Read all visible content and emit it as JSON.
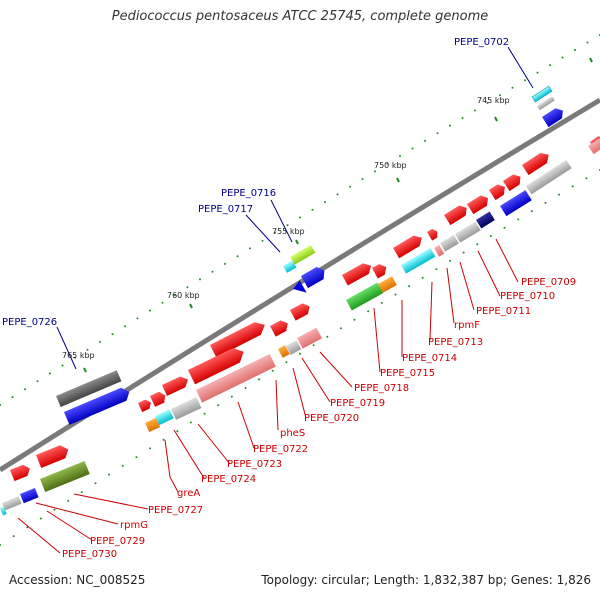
{
  "title": "Pediococcus pentosaceus ATCC 25745, complete genome",
  "footer": {
    "accession": "Accession: NC_008525",
    "summary": "Topology: circular; Length: 1,832,387 bp; Genes: 1,826"
  },
  "kbp_labels": [
    "745 kbp",
    "750 kbp",
    "755 kbp",
    "760 kbp",
    "765 kbp"
  ],
  "blue_labels": [
    "PEPE_0702",
    "PEPE_0716",
    "PEPE_0717",
    "PEPE_0726"
  ],
  "red_labels": [
    "PEPE_0709",
    "PEPE_0710",
    "PEPE_0711",
    "rpmF",
    "PEPE_0713",
    "PEPE_0714",
    "PEPE_0715",
    "PEPE_0718",
    "PEPE_0719",
    "PEPE_0720",
    "pheS",
    "PEPE_0722",
    "PEPE_0723",
    "PEPE_0724",
    "greA",
    "PEPE_0727",
    "rpmG",
    "PEPE_0729",
    "PEPE_0730"
  ],
  "colors": {
    "backbone": "#808080",
    "forward_gene": "#ff0000",
    "cds_pale": "#f08080",
    "gray_feature": "#b0b0b0",
    "blue_feature": "#0000ff",
    "cyan_feature": "#00e5ee",
    "green_feature": "#32cd32",
    "olive_feature": "#6b8e23",
    "lime_feature": "#adff2f",
    "orange_feature": "#ff8c00",
    "dark_gray_feature": "#555555",
    "navy_feature": "#000080",
    "tick_green": "#228b22"
  }
}
